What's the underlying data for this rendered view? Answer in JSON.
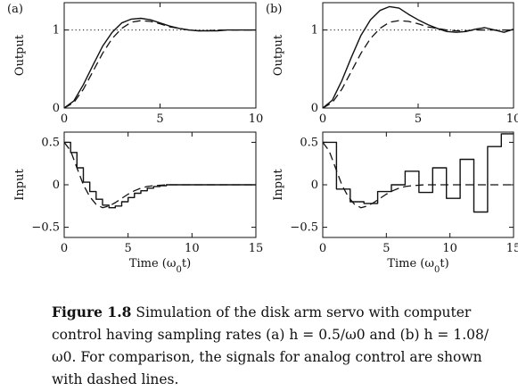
{
  "caption": {
    "label": "Figure 1.8",
    "text": "Simulation of the disk arm servo with computer control having sampling rates (a) h = 0.5/ω0 and (b) h = 1.08/ω0. For comparison, the signals for analog control are shown with dashed lines."
  },
  "chart_data": [
    {
      "type": "line",
      "panel": "(a)",
      "ylabel": "Output",
      "xlim": [
        0,
        10
      ],
      "ylim": [
        0,
        1.35
      ],
      "xticks": [
        "0",
        "5",
        "10"
      ],
      "yticks": [
        "0",
        "1"
      ],
      "reference_line": {
        "y": 1,
        "style": "dotted"
      },
      "series": [
        {
          "style": "solid",
          "x": [
            0,
            0.5,
            1,
            1.5,
            2,
            2.5,
            3,
            3.5,
            4,
            4.5,
            5,
            5.5,
            6,
            6.5,
            7,
            7.5,
            8,
            8.5,
            9,
            9.5,
            10
          ],
          "y": [
            0,
            0.09,
            0.3,
            0.55,
            0.79,
            0.97,
            1.09,
            1.14,
            1.15,
            1.13,
            1.09,
            1.05,
            1.02,
            1.0,
            0.99,
            0.99,
            0.99,
            1.0,
            1.0,
            1.0,
            1.0
          ]
        },
        {
          "style": "dashed",
          "x": [
            0,
            0.5,
            1,
            1.5,
            2,
            2.5,
            3,
            3.5,
            4,
            4.5,
            5,
            5.5,
            6,
            6.5,
            7,
            7.5,
            8,
            8.5,
            9,
            9.5,
            10
          ],
          "y": [
            0,
            0.07,
            0.24,
            0.47,
            0.7,
            0.89,
            1.02,
            1.1,
            1.12,
            1.11,
            1.08,
            1.04,
            1.02,
            1.0,
            0.99,
            0.99,
            1.0,
            1.0,
            1.0,
            1.0,
            1.0
          ]
        }
      ]
    },
    {
      "type": "line",
      "panel": "(b)",
      "ylabel": "Output",
      "xlim": [
        0,
        10
      ],
      "ylim": [
        0,
        1.35
      ],
      "xticks": [
        "0",
        "5",
        "10"
      ],
      "yticks": [
        "0",
        "1"
      ],
      "reference_line": {
        "y": 1,
        "style": "dotted"
      },
      "series": [
        {
          "style": "solid",
          "x": [
            0,
            0.5,
            1,
            1.5,
            2,
            2.5,
            3,
            3.5,
            4,
            4.5,
            5,
            5.5,
            6,
            6.5,
            7,
            7.5,
            8,
            8.5,
            9,
            9.5,
            10
          ],
          "y": [
            0,
            0.1,
            0.35,
            0.65,
            0.93,
            1.13,
            1.25,
            1.3,
            1.28,
            1.2,
            1.13,
            1.07,
            1.02,
            0.98,
            0.97,
            0.98,
            1.01,
            1.03,
            1.0,
            0.97,
            1.01
          ]
        },
        {
          "style": "dashed",
          "x": [
            0,
            0.5,
            1,
            1.5,
            2,
            2.5,
            3,
            3.5,
            4,
            4.5,
            5,
            5.5,
            6,
            6.5,
            7,
            7.5,
            8,
            8.5,
            9,
            9.5,
            10
          ],
          "y": [
            0,
            0.07,
            0.24,
            0.47,
            0.7,
            0.89,
            1.02,
            1.1,
            1.12,
            1.11,
            1.08,
            1.04,
            1.02,
            1.0,
            0.99,
            0.99,
            1.0,
            1.0,
            1.0,
            1.0,
            1.0
          ]
        }
      ]
    },
    {
      "type": "line",
      "panel": "(a)",
      "ylabel": "Input",
      "xlabel": "Time (ω0t)",
      "xlim": [
        0,
        15
      ],
      "ylim": [
        -0.62,
        0.62
      ],
      "xticks": [
        "0",
        "5",
        "10",
        "15"
      ],
      "yticks": [
        "0.5",
        "0",
        "−0.5"
      ],
      "series": [
        {
          "style": "step",
          "h": 0.5,
          "values": [
            0.5,
            0.38,
            0.2,
            0.03,
            -0.08,
            -0.17,
            -0.24,
            -0.27,
            -0.25,
            -0.2,
            -0.15,
            -0.1,
            -0.07,
            -0.04,
            -0.02,
            -0.01,
            0,
            0,
            0,
            0,
            0,
            0,
            0,
            0,
            0,
            0,
            0,
            0,
            0,
            0
          ]
        },
        {
          "style": "dashed",
          "x": [
            0,
            0.5,
            1,
            1.5,
            2,
            2.5,
            3,
            3.5,
            4,
            4.5,
            5,
            5.5,
            6,
            6.5,
            7,
            8,
            9,
            10,
            12,
            15
          ],
          "y": [
            0.5,
            0.4,
            0.2,
            0.0,
            -0.14,
            -0.23,
            -0.27,
            -0.25,
            -0.21,
            -0.16,
            -0.11,
            -0.07,
            -0.04,
            -0.02,
            -0.01,
            0,
            0,
            0,
            0,
            0
          ]
        }
      ]
    },
    {
      "type": "line",
      "panel": "(b)",
      "ylabel": "Input",
      "xlabel": "Time (ω0t)",
      "xlim": [
        0,
        15
      ],
      "ylim": [
        -0.62,
        0.62
      ],
      "xticks": [
        "0",
        "5",
        "10",
        "15"
      ],
      "yticks": [
        "0.5",
        "0",
        "−0.5"
      ],
      "series": [
        {
          "style": "step",
          "h": 1.08,
          "values": [
            0.5,
            -0.05,
            -0.2,
            -0.22,
            -0.08,
            0.0,
            0.16,
            -0.09,
            0.2,
            -0.16,
            0.3,
            -0.32,
            0.45,
            0.6
          ]
        },
        {
          "style": "dashed",
          "x": [
            0,
            0.5,
            1,
            1.5,
            2,
            2.5,
            3,
            3.5,
            4,
            4.5,
            5,
            5.5,
            6,
            6.5,
            7,
            8,
            9,
            10,
            12,
            15
          ],
          "y": [
            0.5,
            0.4,
            0.2,
            0.0,
            -0.14,
            -0.23,
            -0.27,
            -0.25,
            -0.21,
            -0.16,
            -0.11,
            -0.07,
            -0.04,
            -0.02,
            -0.01,
            0,
            0,
            0,
            0,
            0
          ]
        }
      ]
    }
  ]
}
